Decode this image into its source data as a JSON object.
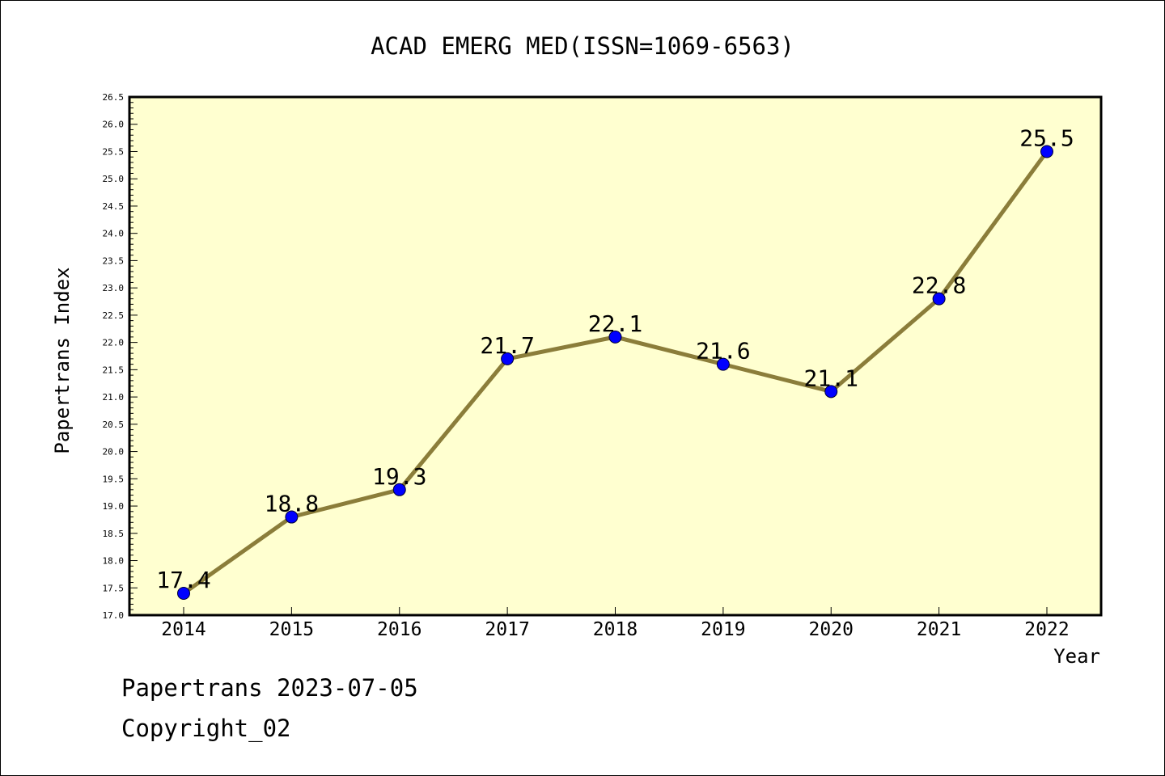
{
  "chart_data": {
    "type": "line",
    "title": "ACAD EMERG MED(ISSN=1069-6563)",
    "xlabel": "Year",
    "ylabel": "Papertrans Index",
    "categories": [
      "2014",
      "2015",
      "2016",
      "2017",
      "2018",
      "2019",
      "2020",
      "2021",
      "2022"
    ],
    "values": [
      17.4,
      18.8,
      19.3,
      21.7,
      22.1,
      21.6,
      21.1,
      22.8,
      25.5
    ],
    "data_labels": [
      "17.4",
      "18.8",
      "19.3",
      "21.7",
      "22.1",
      "21.6",
      "21.1",
      "22.8",
      "25.5"
    ],
    "ylim": [
      17.0,
      26.5
    ],
    "y_ticks": [
      "17.0",
      "17.5",
      "18.0",
      "18.5",
      "19.0",
      "19.5",
      "20.0",
      "20.5",
      "21.0",
      "21.5",
      "22.0",
      "22.5",
      "23.0",
      "23.5",
      "24.0",
      "24.5",
      "25.0",
      "25.5",
      "26.0",
      "26.5"
    ],
    "grid": false,
    "legend": "none",
    "colors": {
      "plot_background": "#ffffd0",
      "line": "#8b7d3a",
      "marker": "#0000ff"
    }
  },
  "footer": {
    "line1": "Papertrans 2023-07-05",
    "line2": "Copyright_02"
  }
}
